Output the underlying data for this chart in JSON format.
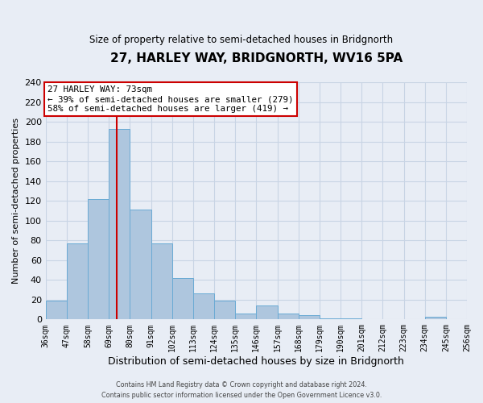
{
  "title": "27, HARLEY WAY, BRIDGNORTH, WV16 5PA",
  "subtitle": "Size of property relative to semi-detached houses in Bridgnorth",
  "xlabel": "Distribution of semi-detached houses by size in Bridgnorth",
  "ylabel": "Number of semi-detached properties",
  "bin_edges": [
    36,
    47,
    58,
    69,
    80,
    91,
    102,
    113,
    124,
    135,
    146,
    157,
    168,
    179,
    190,
    201,
    212,
    223,
    234,
    245,
    256
  ],
  "bar_heights": [
    19,
    77,
    122,
    193,
    111,
    77,
    42,
    26,
    19,
    6,
    14,
    6,
    4,
    1,
    1,
    0,
    0,
    0,
    3,
    0
  ],
  "bar_color": "#aec6de",
  "bar_edge_color": "#6aaad4",
  "property_size": 73,
  "property_line_color": "#cc0000",
  "annotation_title": "27 HARLEY WAY: 73sqm",
  "annotation_line1": "← 39% of semi-detached houses are smaller (279)",
  "annotation_line2": "58% of semi-detached houses are larger (419) →",
  "annotation_box_color": "#ffffff",
  "annotation_box_edge": "#cc0000",
  "ylim": [
    0,
    240
  ],
  "yticks": [
    0,
    20,
    40,
    60,
    80,
    100,
    120,
    140,
    160,
    180,
    200,
    220,
    240
  ],
  "grid_color": "#c8d4e4",
  "background_color": "#e8edf5",
  "footer_line1": "Contains HM Land Registry data © Crown copyright and database right 2024.",
  "footer_line2": "Contains public sector information licensed under the Open Government Licence v3.0."
}
